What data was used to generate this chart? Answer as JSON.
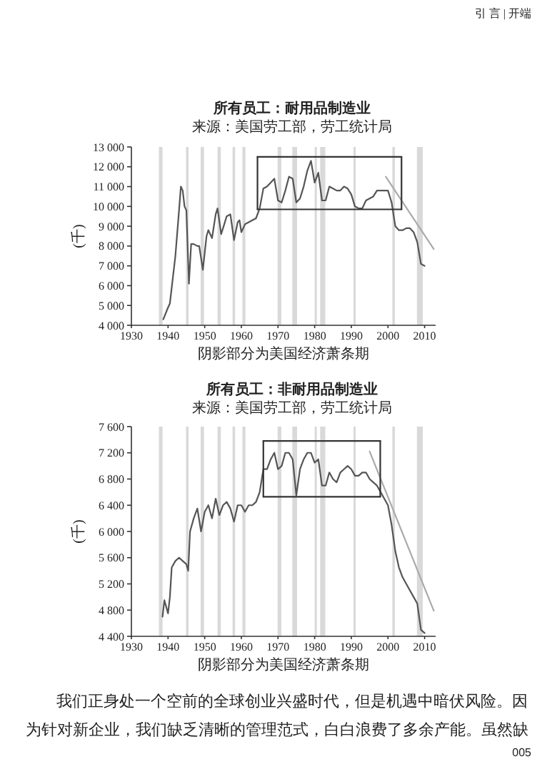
{
  "chart_data": [
    {
      "type": "line",
      "title": "所有员工：耐用品制造业",
      "subtitle": "来源：美国劳工部，劳工统计局",
      "xlabel": "阴影部分为美国经济萧条期",
      "ylabel": "(千)",
      "annotations": [
        "引 言 | 开端"
      ],
      "xlim": [
        1930,
        2013
      ],
      "ylim": [
        4000,
        13000
      ],
      "xticks": [
        1930,
        1940,
        1950,
        1960,
        1970,
        1980,
        1990,
        2000,
        2010
      ],
      "yticks": [
        {
          "value": 4000,
          "label": "4 000"
        },
        {
          "value": 5000,
          "label": "5 000"
        },
        {
          "value": 6000,
          "label": "6 000"
        },
        {
          "value": 7000,
          "label": "7 000"
        },
        {
          "value": 8000,
          "label": "8 000"
        },
        {
          "value": 9000,
          "label": "9 000"
        },
        {
          "value": 10000,
          "label": "10 000"
        },
        {
          "value": 11000,
          "label": "11 000"
        },
        {
          "value": 12000,
          "label": "12 000"
        },
        {
          "value": 13000,
          "label": "13 000"
        }
      ],
      "bands": [
        {
          "axis": "x",
          "from": 1937.5,
          "to": 1938.5,
          "color": "#d9d9d9"
        },
        {
          "axis": "x",
          "from": 1944.9,
          "to": 1945.6,
          "color": "#d9d9d9"
        },
        {
          "axis": "x",
          "from": 1948.9,
          "to": 1949.8,
          "color": "#d9d9d9"
        },
        {
          "axis": "x",
          "from": 1953.5,
          "to": 1954.4,
          "color": "#d9d9d9"
        },
        {
          "axis": "x",
          "from": 1957.6,
          "to": 1958.3,
          "color": "#d9d9d9"
        },
        {
          "axis": "x",
          "from": 1960.3,
          "to": 1961.1,
          "color": "#d9d9d9"
        },
        {
          "axis": "x",
          "from": 1969.9,
          "to": 1970.9,
          "color": "#d9d9d9"
        },
        {
          "axis": "x",
          "from": 1973.9,
          "to": 1975.2,
          "color": "#d9d9d9"
        },
        {
          "axis": "x",
          "from": 1980,
          "to": 1980.6,
          "color": "#d9d9d9"
        },
        {
          "axis": "x",
          "from": 1981.5,
          "to": 1982.9,
          "color": "#d9d9d9"
        },
        {
          "axis": "x",
          "from": 1990.6,
          "to": 1991.2,
          "color": "#d9d9d9"
        },
        {
          "axis": "x",
          "from": 2001.2,
          "to": 2001.9,
          "color": "#d9d9d9"
        },
        {
          "axis": "x",
          "from": 2007.9,
          "to": 2009.5,
          "color": "#d9d9d9"
        }
      ],
      "series": [
        {
          "type": "line",
          "color": "#555555",
          "x": [
            1938.7,
            1940,
            1940.5,
            1942,
            1943,
            1943.5,
            1944,
            1944.5,
            1945,
            1945.7,
            1946.3,
            1947,
            1948,
            1948.5,
            1949.5,
            1950.5,
            1951,
            1952,
            1953,
            1953.5,
            1954.5,
            1955.5,
            1956,
            1957,
            1958,
            1959,
            1959.5,
            1960,
            1961,
            1962,
            1963,
            1964,
            1965,
            1966,
            1967,
            1968,
            1969,
            1970,
            1971,
            1972,
            1973,
            1974,
            1975,
            1976,
            1977,
            1978,
            1979,
            1980,
            1981,
            1982,
            1983,
            1984,
            1985,
            1986,
            1987,
            1988,
            1989,
            1990,
            1991,
            1992,
            1993,
            1994,
            1995,
            1996,
            1997,
            1998,
            1999,
            2000,
            2001,
            2002,
            2003,
            2004,
            2005,
            2006,
            2007,
            2008,
            2009,
            2010
          ],
          "values": [
            4300,
            4900,
            5100,
            7500,
            9800,
            11000,
            10800,
            10000,
            9800,
            6100,
            8100,
            8100,
            8000,
            8000,
            6800,
            8500,
            8800,
            8400,
            9600,
            9900,
            8600,
            9200,
            9500,
            9600,
            8300,
            9200,
            9300,
            8700,
            9100,
            9200,
            9300,
            9400,
            9900,
            10900,
            11000,
            11200,
            11400,
            10300,
            10200,
            10800,
            11500,
            11400,
            10200,
            10400,
            11000,
            11800,
            12300,
            11200,
            11700,
            10300,
            10300,
            11000,
            10900,
            10800,
            10800,
            11000,
            10900,
            10600,
            10000,
            9900,
            9900,
            10300,
            10400,
            10500,
            10800,
            10800,
            10800,
            10800,
            10200,
            9000,
            8800,
            8800,
            8900,
            8900,
            8700,
            8200,
            7100,
            7000
          ]
        },
        {
          "type": "line",
          "color": "#aaaaaa",
          "x": [
            1999.4,
            2012.5
          ],
          "values": [
            11500,
            7850
          ]
        },
        {
          "type": "line",
          "color": "#333333",
          "x": [
            1964.4,
            2003.7
          ],
          "values": [
            12500,
            12500
          ]
        },
        {
          "type": "line",
          "color": "#333333",
          "x": [
            1964.4,
            2003.7
          ],
          "values": [
            9850,
            9850
          ]
        },
        {
          "type": "line",
          "color": "#333333",
          "x": [
            1964.4,
            1964.4
          ],
          "values": [
            9850,
            12500
          ]
        },
        {
          "type": "line",
          "color": "#333333",
          "x": [
            2003.7,
            2003.7
          ],
          "values": [
            9850,
            12500
          ]
        }
      ]
    },
    {
      "type": "line",
      "title": "所有员工：非耐用品制造业",
      "subtitle": "来源：美国劳工部，劳工统计局",
      "xlabel": "阴影部分为美国经济萧条期",
      "ylabel": "(千)",
      "annotations": [
        "我们正身处一个空前的全球创业兴盛时代，但是机遇中暗伏风险。因为针对新企业，我们缺乏清晰的管理范式，白白浪费了多余产能。虽然缺",
        "005"
      ],
      "xlim": [
        1930,
        2013
      ],
      "ylim": [
        4400,
        7600
      ],
      "xticks": [
        1930,
        1940,
        1950,
        1960,
        1970,
        1980,
        1990,
        2000,
        2010
      ],
      "yticks": [
        {
          "value": 4400,
          "label": "4 400"
        },
        {
          "value": 4800,
          "label": "4 800"
        },
        {
          "value": 5200,
          "label": "5 200"
        },
        {
          "value": 5600,
          "label": "5 600"
        },
        {
          "value": 6000,
          "label": "6 000"
        },
        {
          "value": 6400,
          "label": "6 400"
        },
        {
          "value": 6800,
          "label": "6 800"
        },
        {
          "value": 7200,
          "label": "7 200"
        },
        {
          "value": 7600,
          "label": "7 600"
        }
      ],
      "bands": [
        {
          "axis": "x",
          "from": 1937.5,
          "to": 1938.5,
          "color": "#d9d9d9"
        },
        {
          "axis": "x",
          "from": 1944.9,
          "to": 1945.6,
          "color": "#d9d9d9"
        },
        {
          "axis": "x",
          "from": 1948.9,
          "to": 1949.8,
          "color": "#d9d9d9"
        },
        {
          "axis": "x",
          "from": 1953.5,
          "to": 1954.4,
          "color": "#d9d9d9"
        },
        {
          "axis": "x",
          "from": 1957.6,
          "to": 1958.3,
          "color": "#d9d9d9"
        },
        {
          "axis": "x",
          "from": 1960.3,
          "to": 1961.1,
          "color": "#d9d9d9"
        },
        {
          "axis": "x",
          "from": 1969.9,
          "to": 1970.9,
          "color": "#d9d9d9"
        },
        {
          "axis": "x",
          "from": 1973.9,
          "to": 1975.2,
          "color": "#d9d9d9"
        },
        {
          "axis": "x",
          "from": 1980,
          "to": 1980.6,
          "color": "#d9d9d9"
        },
        {
          "axis": "x",
          "from": 1981.5,
          "to": 1982.9,
          "color": "#d9d9d9"
        },
        {
          "axis": "x",
          "from": 1990.6,
          "to": 1991.2,
          "color": "#d9d9d9"
        },
        {
          "axis": "x",
          "from": 2001.2,
          "to": 2001.9,
          "color": "#d9d9d9"
        },
        {
          "axis": "x",
          "from": 2007.9,
          "to": 2009.5,
          "color": "#d9d9d9"
        }
      ],
      "series": [
        {
          "type": "line",
          "color": "#555555",
          "x": [
            1938.5,
            1939,
            1940,
            1940.5,
            1941,
            1942,
            1943,
            1944,
            1945,
            1945.5,
            1946,
            1947,
            1948,
            1949,
            1950,
            1951,
            1952,
            1953,
            1954,
            1955,
            1956,
            1957,
            1958,
            1959,
            1960,
            1961,
            1962,
            1963,
            1964,
            1965,
            1966,
            1967,
            1968,
            1969,
            1970,
            1971,
            1972,
            1973,
            1974,
            1975,
            1976,
            1977,
            1978,
            1979,
            1980,
            1981,
            1982,
            1983,
            1984,
            1985,
            1986,
            1987,
            1988,
            1989,
            1990,
            1991,
            1992,
            1993,
            1994,
            1995,
            1996,
            1997,
            1998,
            1999,
            2000,
            2001,
            2002,
            2003,
            2004,
            2005,
            2006,
            2007,
            2008,
            2009,
            2010
          ],
          "values": [
            4700,
            4950,
            4750,
            5000,
            5450,
            5550,
            5600,
            5550,
            5500,
            5400,
            6000,
            6200,
            6350,
            6000,
            6300,
            6400,
            6200,
            6500,
            6250,
            6400,
            6450,
            6350,
            6150,
            6400,
            6400,
            6300,
            6400,
            6400,
            6450,
            6600,
            6950,
            6950,
            7100,
            7200,
            6950,
            7000,
            7200,
            7200,
            7100,
            6550,
            6950,
            7100,
            7200,
            7200,
            7050,
            7100,
            6700,
            6700,
            6900,
            6800,
            6750,
            6900,
            6950,
            7000,
            6950,
            6850,
            6850,
            6900,
            6900,
            6800,
            6750,
            6700,
            6600,
            6500,
            6400,
            6100,
            5700,
            5450,
            5300,
            5200,
            5100,
            5000,
            4900,
            4500,
            4450
          ]
        },
        {
          "type": "line",
          "color": "#aaaaaa",
          "x": [
            1995,
            2012.5
          ],
          "values": [
            7220,
            4790
          ]
        },
        {
          "type": "line",
          "color": "#333333",
          "x": [
            1966,
            1997.9
          ],
          "values": [
            7380,
            7380
          ]
        },
        {
          "type": "line",
          "color": "#333333",
          "x": [
            1966,
            1997.9
          ],
          "values": [
            6530,
            6530
          ]
        },
        {
          "type": "line",
          "color": "#333333",
          "x": [
            1966,
            1966
          ],
          "values": [
            6530,
            7380
          ]
        },
        {
          "type": "line",
          "color": "#333333",
          "x": [
            1997.9,
            1997.9
          ],
          "values": [
            6530,
            7380
          ]
        }
      ]
    }
  ]
}
